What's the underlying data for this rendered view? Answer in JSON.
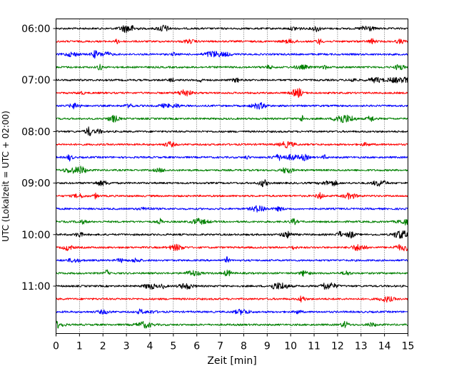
{
  "chart_data": {
    "type": "line",
    "title": "",
    "xlabel": "Zeit  [min]",
    "ylabel": "UTC (Lokalzeit = UTC + 02:00)",
    "xlim": [
      0,
      15
    ],
    "x_ticks": [
      0,
      1,
      2,
      3,
      4,
      5,
      6,
      7,
      8,
      9,
      10,
      11,
      12,
      13,
      14,
      15
    ],
    "y_tick_labels": [
      "06:00",
      "07:00",
      "08:00",
      "09:00",
      "10:00",
      "11:00"
    ],
    "start_time": "06:00",
    "interval_minutes": 15,
    "row_count": 24,
    "trace_colors": [
      "#000000",
      "#ff0000",
      "#0000ff",
      "#008000"
    ],
    "grid": "vertical dotted at each minute"
  }
}
